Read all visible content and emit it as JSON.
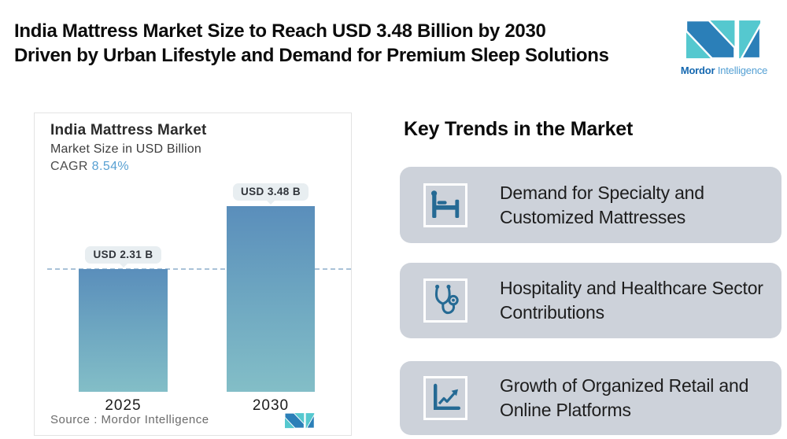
{
  "header": {
    "title_line1": "India Mattress Market Size to Reach USD 3.48 Billion by 2030",
    "title_line2": "Driven by Urban Lifestyle and Demand for Premium Sleep Solutions"
  },
  "brand": {
    "name_bold": "Mordor",
    "name_regular": "Intelligence"
  },
  "chart_card": {
    "title": "India Mattress Market",
    "subtitle": "Market Size in USD Billion",
    "cagr_label": "CAGR ",
    "cagr_value": "8.54%",
    "source_label": "Source :  Mordor Intelligence"
  },
  "chart_data": {
    "type": "bar",
    "title": "India Mattress Market",
    "ylabel": "Market Size in USD Billion",
    "unit": "USD Billion",
    "cagr_percent": 8.54,
    "categories": [
      "2025",
      "2030"
    ],
    "values": [
      2.31,
      3.48
    ],
    "value_labels": [
      "USD 2.31 B",
      "USD 3.48 B"
    ],
    "reference_line_value": 2.31,
    "grid": "off",
    "legend": "none",
    "colors": {
      "bar_gradient_top": "#5a8ebb",
      "bar_gradient_bottom": "#83bec7",
      "reference_line": "#a9c2d8",
      "cagr_accent": "#58a0d2",
      "trend_card_bg": "#cdd2da",
      "icon_blue": "#256a94",
      "logo_teal": "#55c8cf",
      "logo_blue": "#2b7fb8"
    }
  },
  "trends": {
    "heading": "Key Trends in the Market",
    "items": [
      {
        "icon": "bed-icon",
        "line1": "Demand for Specialty and",
        "line2": "Customized Mattresses"
      },
      {
        "icon": "stethoscope-icon",
        "line1": "Hospitality and Healthcare Sector",
        "line2": "Contributions"
      },
      {
        "icon": "growth-chart-icon",
        "line1": "Growth of Organized Retail and",
        "line2": "Online Platforms"
      }
    ]
  }
}
